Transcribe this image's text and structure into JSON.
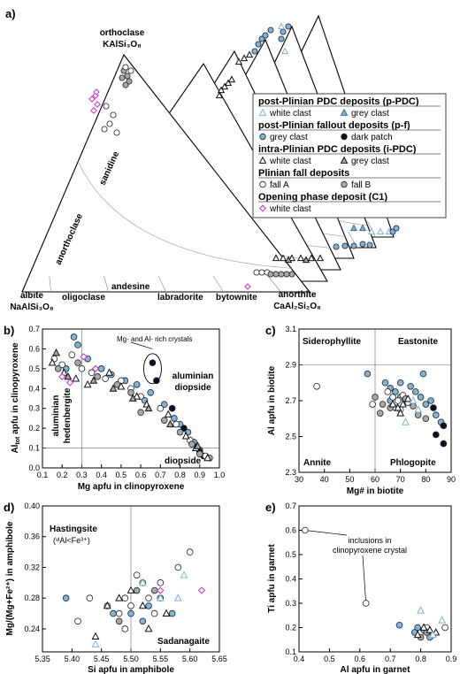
{
  "colors": {
    "blue": "#7fb3d9",
    "grey": "#a8a8a8",
    "dark": "#0b0f24",
    "magenta": "#d03bd0",
    "stroke": "#222222"
  },
  "panel_a": {
    "label": "a)",
    "top_vertex": [
      "orthoclase",
      "KAlSi₃O₈"
    ],
    "left_vertex": [
      "albite",
      "NaAlSi₃O₈"
    ],
    "right_vertex": [
      "anorthite",
      "CaAl₂Si₂O₈"
    ],
    "fields": {
      "sanidine": "sanidine",
      "anorthoclase": "anorthoclase",
      "oligoclase": "oligoclase",
      "andesine": "andesine",
      "labradorite": "labradorite",
      "bytownite": "bytownite"
    }
  },
  "legend": {
    "groups": [
      {
        "title": "post-Plinian PDC deposits (p-PDC)",
        "items": [
          {
            "label": "white clast",
            "marker": "tri-blue"
          },
          {
            "label": "grey clast",
            "marker": "tri-blue-fill"
          }
        ]
      },
      {
        "title": "post-Plinian fallout deposits (p-f)",
        "items": [
          {
            "label": "grey clast",
            "marker": "circle-blue"
          },
          {
            "label": "dark patch",
            "marker": "circle-dark"
          }
        ]
      },
      {
        "title": "intra-Plinian PDC deposits (i-PDC)",
        "items": [
          {
            "label": "white clast",
            "marker": "tri-white"
          },
          {
            "label": "grey clast",
            "marker": "tri-grey"
          }
        ]
      },
      {
        "title": "Plinian fall deposits",
        "items": [
          {
            "label": "fall A",
            "marker": "circle-white"
          },
          {
            "label": "fall B",
            "marker": "circle-grey"
          }
        ]
      },
      {
        "title": "Opening phase deposit (C1)",
        "items": [
          {
            "label": "white clast",
            "marker": "diamond-magenta"
          }
        ]
      }
    ]
  },
  "panel_b": {
    "label": "b)",
    "xlabel": "Mg apfu in clinopyroxene",
    "ylabel_main": "Al",
    "ylabel_sub": "tot",
    "ylabel_tail": " apfu in clinopyroxene",
    "xticks": [
      "0.1",
      "0.2",
      "0.3",
      "0.4",
      "0.5",
      "0.6",
      "0.7",
      "0.8",
      "0.9",
      "1.0"
    ],
    "yticks": [
      "0.0",
      "0.1",
      "0.2",
      "0.3",
      "0.4",
      "0.5",
      "0.6",
      "0.7"
    ],
    "annot": {
      "mg_al": "Mg- and Al- rich crystals",
      "al_diop_1": "aluminian",
      "al_diop_2": "diopside",
      "al_hed_1": "aluminian",
      "al_hed_2": "hedenbergite",
      "diopside": "diopside"
    }
  },
  "panel_c": {
    "label": "c)",
    "xlabel": "Mg# in biotite",
    "ylabel": "Al apfu in biotite",
    "xticks": [
      "30",
      "40",
      "50",
      "60",
      "70",
      "80",
      "90"
    ],
    "yticks": [
      "2.3",
      "2.5",
      "2.7",
      "2.9",
      "3.1"
    ],
    "annot": {
      "sid": "Siderophyllite",
      "east": "Eastonite",
      "annite": "Annite",
      "phlog": "Phlogopite"
    }
  },
  "panel_d": {
    "label": "d)",
    "xlabel": "Si apfu in amphibole",
    "ylabel": "Mg/(Mg+Fe²⁺) in amphibole",
    "xticks": [
      "5.35",
      "5.40",
      "5.45",
      "5.50",
      "5.55",
      "5.60",
      "5.65"
    ],
    "yticks": [
      "0.24",
      "0.28",
      "0.32",
      "0.36",
      "0.40"
    ],
    "annot": {
      "hast": "Hastingsite",
      "hast2": "(ᵛᴵAl<Fe³⁺)",
      "sad": "Sadanagaite"
    }
  },
  "panel_e": {
    "label": "e)",
    "xlabel": "Al apfu in garnet",
    "ylabel": "Ti apfu in garnet",
    "xticks": [
      "0.4",
      "0.5",
      "0.6",
      "0.7",
      "0.8",
      "0.9"
    ],
    "yticks": [
      "0.1",
      "0.2",
      "0.3",
      "0.4",
      "0.5",
      "0.6",
      "0.7"
    ],
    "annot": {
      "incl1": "inclusions in",
      "incl2": "clinopyroxene crystal"
    }
  },
  "chart_data": [
    {
      "type": "scatter",
      "panel": "b",
      "xlim": [
        0.1,
        1.0
      ],
      "ylim": [
        0.0,
        0.7
      ],
      "series": [
        {
          "marker": "circle-blue",
          "points": [
            [
              0.26,
              0.66
            ],
            [
              0.28,
              0.62
            ],
            [
              0.33,
              0.55
            ],
            [
              0.4,
              0.5
            ],
            [
              0.52,
              0.44
            ],
            [
              0.58,
              0.42
            ],
            [
              0.65,
              0.38
            ],
            [
              0.72,
              0.32
            ],
            [
              0.77,
              0.25
            ],
            [
              0.8,
              0.22
            ],
            [
              0.84,
              0.18
            ],
            [
              0.87,
              0.13
            ],
            [
              0.9,
              0.09
            ],
            [
              0.22,
              0.5
            ],
            [
              0.45,
              0.47
            ],
            [
              0.62,
              0.34
            ]
          ]
        },
        {
          "marker": "circle-dark",
          "points": [
            [
              0.66,
              0.53
            ],
            [
              0.68,
              0.44
            ],
            [
              0.76,
              0.3
            ],
            [
              0.82,
              0.2
            ],
            [
              0.9,
              0.08
            ],
            [
              0.92,
              0.06
            ]
          ]
        },
        {
          "marker": "circle-white",
          "points": [
            [
              0.16,
              0.55
            ],
            [
              0.2,
              0.52
            ],
            [
              0.25,
              0.57
            ],
            [
              0.3,
              0.5
            ],
            [
              0.35,
              0.48
            ],
            [
              0.42,
              0.45
            ],
            [
              0.5,
              0.44
            ],
            [
              0.55,
              0.4
            ],
            [
              0.6,
              0.36
            ],
            [
              0.7,
              0.3
            ],
            [
              0.78,
              0.22
            ],
            [
              0.85,
              0.14
            ],
            [
              0.93,
              0.06
            ]
          ]
        },
        {
          "marker": "circle-grey",
          "points": [
            [
              0.18,
              0.5
            ],
            [
              0.28,
              0.53
            ],
            [
              0.38,
              0.46
            ],
            [
              0.48,
              0.42
            ],
            [
              0.55,
              0.38
            ],
            [
              0.6,
              0.28
            ],
            [
              0.72,
              0.24
            ],
            [
              0.8,
              0.18
            ],
            [
              0.86,
              0.12
            ],
            [
              0.9,
              0.07
            ],
            [
              0.95,
              0.05
            ]
          ]
        },
        {
          "marker": "tri-white",
          "points": [
            [
              0.15,
              0.53
            ],
            [
              0.21,
              0.48
            ],
            [
              0.27,
              0.45
            ],
            [
              0.33,
              0.42
            ],
            [
              0.44,
              0.48
            ],
            [
              0.5,
              0.41
            ],
            [
              0.58,
              0.36
            ],
            [
              0.63,
              0.32
            ],
            [
              0.74,
              0.27
            ],
            [
              0.83,
              0.16
            ],
            [
              0.88,
              0.1
            ],
            [
              0.94,
              0.05
            ]
          ]
        },
        {
          "marker": "tri-grey",
          "points": [
            [
              0.17,
              0.58
            ],
            [
              0.23,
              0.46
            ],
            [
              0.36,
              0.44
            ],
            [
              0.46,
              0.4
            ],
            [
              0.56,
              0.35
            ],
            [
              0.64,
              0.3
            ],
            [
              0.75,
              0.22
            ],
            [
              0.89,
              0.11
            ]
          ]
        },
        {
          "marker": "diamond-magenta",
          "points": [
            [
              0.2,
              0.46
            ],
            [
              0.24,
              0.43
            ],
            [
              0.31,
              0.56
            ],
            [
              0.37,
              0.5
            ]
          ]
        }
      ]
    },
    {
      "type": "scatter",
      "panel": "c",
      "xlim": [
        30,
        90
      ],
      "ylim": [
        2.3,
        3.1
      ],
      "series": [
        {
          "marker": "circle-blue",
          "points": [
            [
              64,
              2.8
            ],
            [
              66,
              2.77
            ],
            [
              68,
              2.75
            ],
            [
              70,
              2.72
            ],
            [
              72,
              2.7
            ],
            [
              74,
              2.78
            ],
            [
              76,
              2.75
            ],
            [
              78,
              2.72
            ],
            [
              80,
              2.68
            ],
            [
              82,
              2.7
            ],
            [
              84,
              2.62
            ],
            [
              86,
              2.58
            ],
            [
              66,
              2.7
            ],
            [
              70,
              2.8
            ],
            [
              79,
              2.85
            ],
            [
              57,
              2.85
            ]
          ]
        },
        {
          "marker": "circle-dark",
          "points": [
            [
              83,
              2.66
            ],
            [
              87,
              2.56
            ],
            [
              87,
              2.46
            ],
            [
              84,
              2.51
            ]
          ]
        },
        {
          "marker": "circle-white",
          "points": [
            [
              37,
              2.78
            ],
            [
              65,
              2.75
            ],
            [
              67,
              2.72
            ],
            [
              69,
              2.7
            ],
            [
              71,
              2.73
            ],
            [
              73,
              2.69
            ],
            [
              68,
              2.66
            ],
            [
              70,
              2.65
            ],
            [
              59,
              2.68
            ]
          ]
        },
        {
          "marker": "circle-grey",
          "points": [
            [
              60,
              2.72
            ],
            [
              63,
              2.68
            ],
            [
              66,
              2.66
            ],
            [
              72,
              2.71
            ],
            [
              75,
              2.67
            ],
            [
              77,
              2.62
            ],
            [
              80,
              2.6
            ],
            [
              62,
              2.63
            ]
          ]
        },
        {
          "marker": "tri-white",
          "points": [
            [
              67,
              2.68
            ],
            [
              69,
              2.66
            ],
            [
              71,
              2.68
            ],
            [
              73,
              2.71
            ],
            [
              70,
              2.63
            ]
          ]
        },
        {
          "marker": "tri-blue",
          "points": [
            [
              72,
              2.58
            ],
            [
              75,
              2.7
            ],
            [
              77,
              2.65
            ]
          ]
        }
      ]
    },
    {
      "type": "scatter",
      "panel": "d",
      "xlim": [
        5.35,
        5.65
      ],
      "ylim": [
        0.21,
        0.4
      ],
      "series": [
        {
          "marker": "circle-white",
          "points": [
            [
              5.41,
              0.25
            ],
            [
              5.43,
              0.28
            ],
            [
              5.46,
              0.27
            ],
            [
              5.48,
              0.26
            ],
            [
              5.49,
              0.28
            ],
            [
              5.5,
              0.27
            ],
            [
              5.51,
              0.31
            ],
            [
              5.52,
              0.3
            ],
            [
              5.53,
              0.28
            ],
            [
              5.55,
              0.3
            ],
            [
              5.58,
              0.32
            ],
            [
              5.6,
              0.34
            ],
            [
              5.49,
              0.24
            ],
            [
              5.54,
              0.26
            ]
          ]
        },
        {
          "marker": "circle-blue",
          "points": [
            [
              5.39,
              0.28
            ],
            [
              5.47,
              0.26
            ],
            [
              5.5,
              0.26
            ],
            [
              5.53,
              0.27
            ],
            [
              5.55,
              0.28
            ],
            [
              5.57,
              0.26
            ],
            [
              5.52,
              0.25
            ]
          ]
        },
        {
          "marker": "circle-grey",
          "points": [
            [
              5.48,
              0.25
            ],
            [
              5.51,
              0.29
            ],
            [
              5.54,
              0.29
            ]
          ]
        },
        {
          "marker": "tri-white",
          "points": [
            [
              5.44,
              0.23
            ],
            [
              5.46,
              0.27
            ],
            [
              5.48,
              0.28
            ],
            [
              5.5,
              0.29
            ],
            [
              5.52,
              0.27
            ],
            [
              5.56,
              0.26
            ],
            [
              5.53,
              0.24
            ]
          ]
        },
        {
          "marker": "tri-blue",
          "points": [
            [
              5.52,
              0.3
            ],
            [
              5.55,
              0.28
            ],
            [
              5.58,
              0.28
            ],
            [
              5.59,
              0.31
            ],
            [
              5.44,
              0.22
            ]
          ]
        },
        {
          "marker": "diamond-magenta",
          "points": [
            [
              5.55,
              0.29
            ],
            [
              5.62,
              0.29
            ]
          ]
        }
      ]
    },
    {
      "type": "scatter",
      "panel": "e",
      "xlim": [
        0.4,
        0.9
      ],
      "ylim": [
        0.1,
        0.7
      ],
      "series": [
        {
          "marker": "circle-white",
          "points": [
            [
              0.42,
              0.6
            ],
            [
              0.62,
              0.3
            ],
            [
              0.8,
              0.18
            ],
            [
              0.82,
              0.2
            ],
            [
              0.84,
              0.17
            ],
            [
              0.88,
              0.2
            ]
          ]
        },
        {
          "marker": "circle-blue",
          "points": [
            [
              0.73,
              0.21
            ],
            [
              0.78,
              0.18
            ],
            [
              0.79,
              0.2
            ],
            [
              0.81,
              0.19
            ],
            [
              0.83,
              0.16
            ]
          ]
        },
        {
          "marker": "circle-grey",
          "points": [
            [
              0.8,
              0.16
            ],
            [
              0.82,
              0.18
            ]
          ]
        },
        {
          "marker": "tri-white",
          "points": [
            [
              0.79,
              0.17
            ],
            [
              0.81,
              0.2
            ],
            [
              0.83,
              0.19
            ],
            [
              0.85,
              0.18
            ]
          ]
        },
        {
          "marker": "tri-blue",
          "points": [
            [
              0.8,
              0.27
            ],
            [
              0.87,
              0.23
            ],
            [
              0.84,
              0.17
            ]
          ]
        }
      ]
    }
  ]
}
